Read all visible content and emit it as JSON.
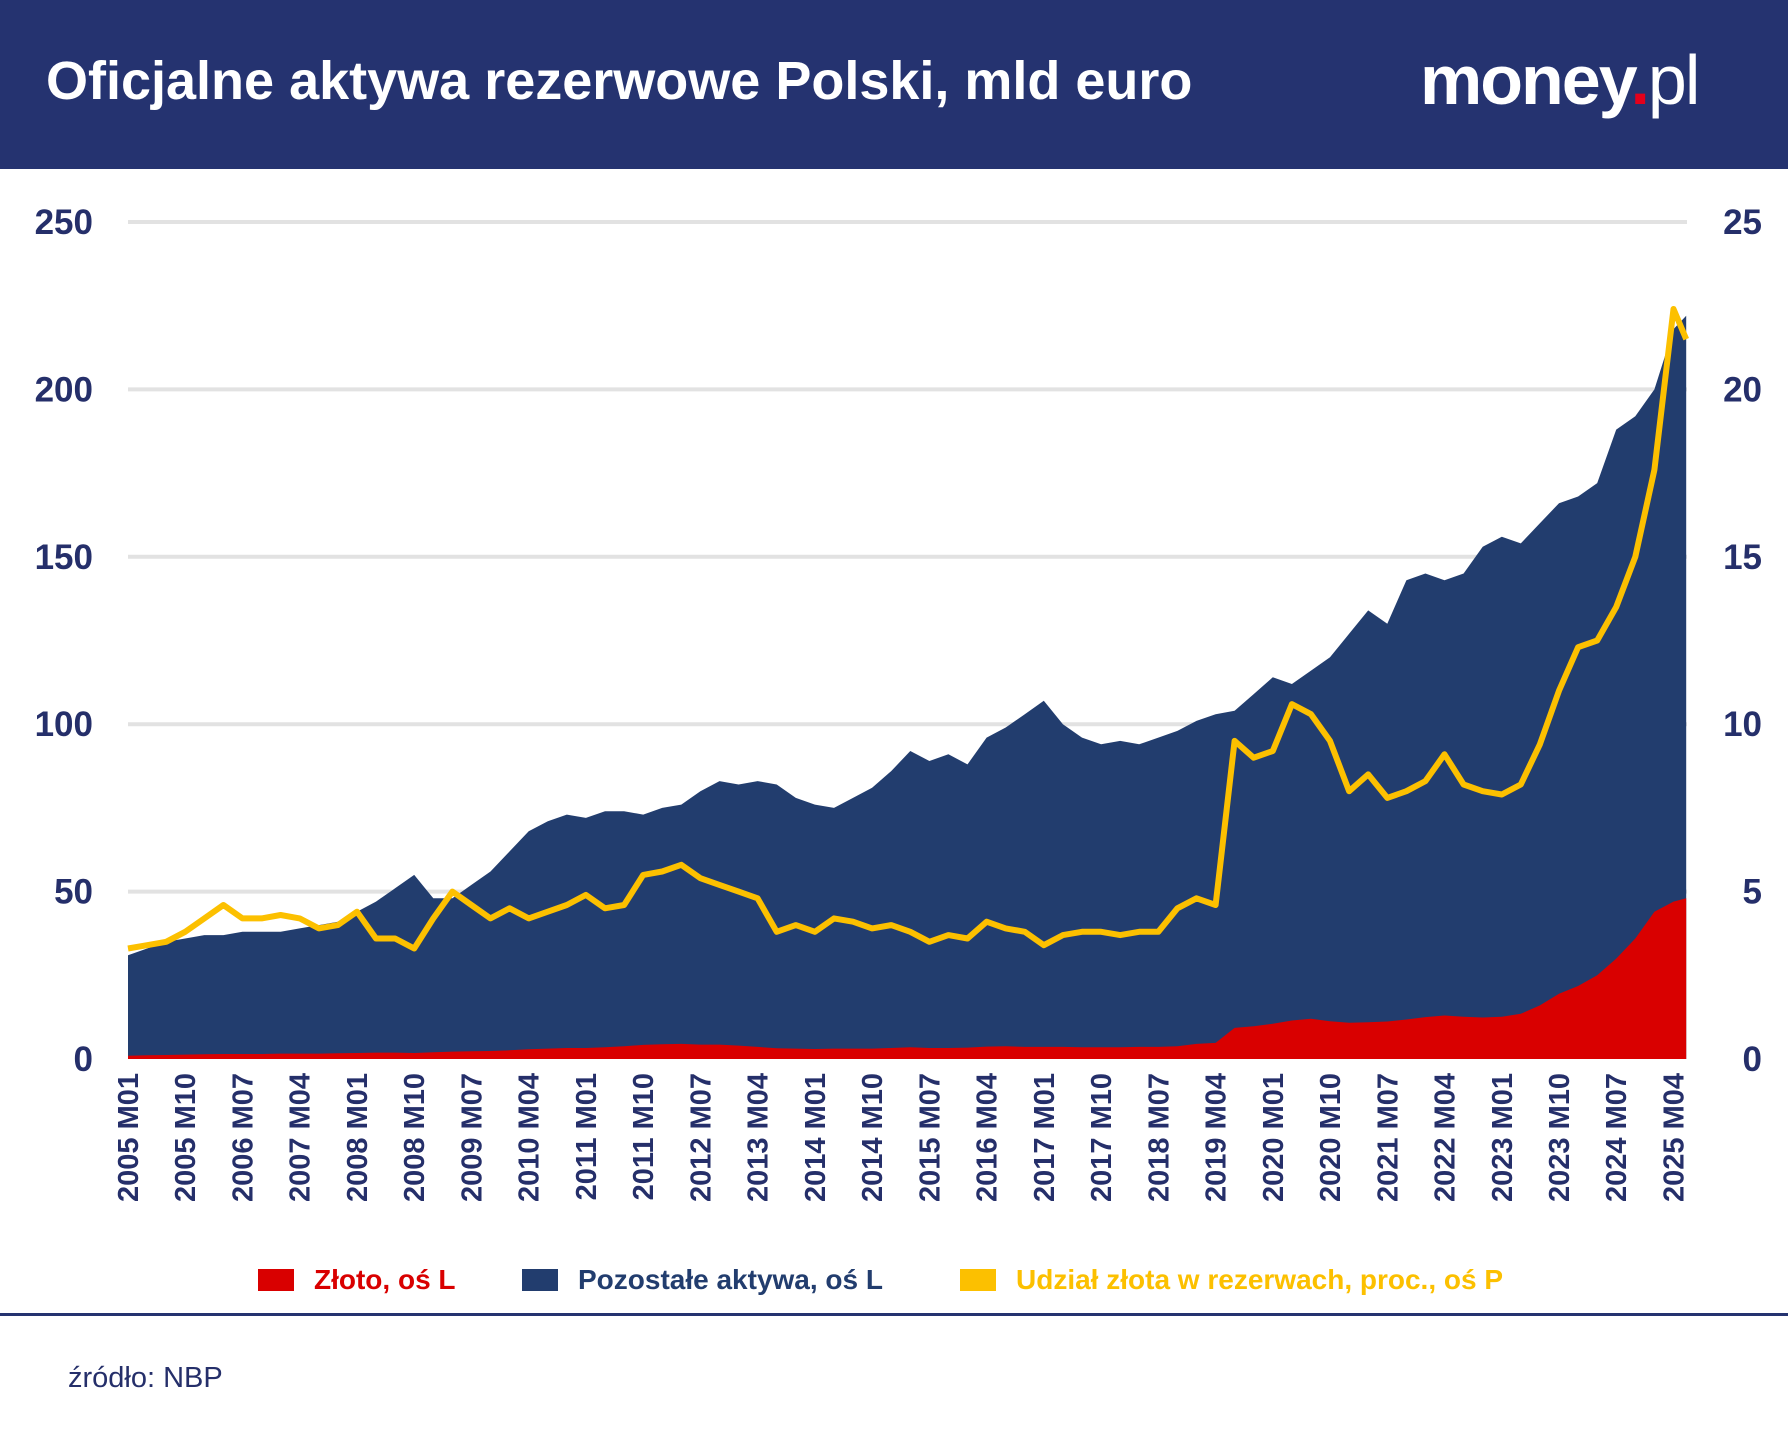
{
  "header": {
    "title": "Oficjalne aktywa rezerwowe Polski, mld euro",
    "logo": "money.pl"
  },
  "colors": {
    "header_bg": "#253370",
    "gold": "#d90000",
    "other": "#223d6e",
    "share": "#fcc000",
    "text": "#252f6a"
  },
  "legend": [
    {
      "label": "Złoto, oś L",
      "color": "#d90000"
    },
    {
      "label": "Pozostałe aktywa, oś L",
      "color": "#223d6e"
    },
    {
      "label": "Udział złota w rezerwach, proc., oś P",
      "color": "#fcc000"
    }
  ],
  "source": "źródło: NBP",
  "chart_data": {
    "type": "area",
    "title": "Oficjalne aktywa rezerwowe Polski, mld euro",
    "left_axis": {
      "ylim": [
        0,
        250
      ],
      "ticks": [
        "0",
        "50",
        "100",
        "150",
        "200",
        "250"
      ]
    },
    "right_axis": {
      "ylim": [
        0,
        25
      ],
      "ticks": [
        "0",
        "5",
        "10",
        "15",
        "20",
        "25"
      ]
    },
    "grid": true,
    "legend_position": "bottom",
    "x_ticks": [
      "2005 M01",
      "2005 M10",
      "2006 M07",
      "2007 M04",
      "2008 M01",
      "2008 M10",
      "2009 M07",
      "2010 M04",
      "2011 M01",
      "2011 M10",
      "2012 M07",
      "2013 M04",
      "2014 M01",
      "2014 M10",
      "2015 M07",
      "2016 M04",
      "2017 M01",
      "2017 M10",
      "2018 M07",
      "2019 M04",
      "2020 M01",
      "2020 M10",
      "2021 M07",
      "2022 M04",
      "2023 M01",
      "2023 M10",
      "2024 M07",
      "2025 M04"
    ],
    "x": [
      "2005 M01",
      "2005 M04",
      "2005 M07",
      "2005 M10",
      "2006 M01",
      "2006 M04",
      "2006 M07",
      "2006 M10",
      "2007 M01",
      "2007 M04",
      "2007 M07",
      "2007 M10",
      "2008 M01",
      "2008 M04",
      "2008 M07",
      "2008 M10",
      "2009 M01",
      "2009 M04",
      "2009 M07",
      "2009 M10",
      "2010 M01",
      "2010 M04",
      "2010 M07",
      "2010 M10",
      "2011 M01",
      "2011 M04",
      "2011 M07",
      "2011 M10",
      "2012 M01",
      "2012 M04",
      "2012 M07",
      "2012 M10",
      "2013 M01",
      "2013 M04",
      "2013 M07",
      "2013 M10",
      "2014 M01",
      "2014 M04",
      "2014 M07",
      "2014 M10",
      "2015 M01",
      "2015 M04",
      "2015 M07",
      "2015 M10",
      "2016 M01",
      "2016 M04",
      "2016 M07",
      "2016 M10",
      "2017 M01",
      "2017 M04",
      "2017 M07",
      "2017 M10",
      "2018 M01",
      "2018 M04",
      "2018 M07",
      "2018 M10",
      "2019 M01",
      "2019 M04",
      "2019 M07",
      "2019 M10",
      "2020 M01",
      "2020 M04",
      "2020 M07",
      "2020 M10",
      "2021 M01",
      "2021 M04",
      "2021 M07",
      "2021 M10",
      "2022 M01",
      "2022 M04",
      "2022 M07",
      "2022 M10",
      "2023 M01",
      "2023 M04",
      "2023 M07",
      "2023 M10",
      "2024 M01",
      "2024 M04",
      "2024 M07",
      "2024 M10",
      "2025 M01",
      "2025 M04",
      "2025 M06"
    ],
    "series": [
      {
        "name": "Złoto, oś L",
        "axis": "left",
        "values": [
          1.0,
          1.1,
          1.2,
          1.3,
          1.4,
          1.5,
          1.5,
          1.5,
          1.6,
          1.6,
          1.6,
          1.7,
          1.8,
          1.9,
          1.9,
          1.8,
          2.0,
          2.2,
          2.3,
          2.4,
          2.6,
          2.9,
          3.1,
          3.3,
          3.3,
          3.5,
          3.8,
          4.2,
          4.4,
          4.5,
          4.3,
          4.3,
          4.0,
          3.6,
          3.2,
          3.1,
          3.0,
          3.1,
          3.1,
          3.1,
          3.3,
          3.5,
          3.3,
          3.3,
          3.4,
          3.7,
          3.8,
          3.6,
          3.6,
          3.6,
          3.5,
          3.5,
          3.5,
          3.6,
          3.6,
          3.8,
          4.5,
          4.8,
          9.3,
          9.8,
          10.5,
          11.5,
          12.0,
          11.3,
          10.8,
          11.0,
          11.2,
          11.8,
          12.5,
          13.0,
          12.6,
          12.4,
          12.6,
          13.5,
          16.0,
          19.5,
          21.8,
          25.0,
          30.0,
          36.0,
          44.0,
          47.0,
          48.0
        ]
      },
      {
        "name": "Pozostałe aktywa, oś L",
        "axis": "left",
        "total_values": [
          31,
          33,
          35,
          36,
          37,
          37,
          38,
          38,
          38,
          39,
          40,
          41,
          44,
          47,
          51,
          55,
          48,
          48,
          52,
          56,
          62,
          68,
          71,
          73,
          72,
          74,
          74,
          73,
          75,
          76,
          80,
          83,
          82,
          83,
          82,
          78,
          76,
          75,
          78,
          81,
          86,
          92,
          89,
          91,
          88,
          96,
          99,
          103,
          107,
          100,
          96,
          94,
          95,
          94,
          96,
          98,
          101,
          103,
          104,
          109,
          114,
          112,
          116,
          120,
          127,
          134,
          130,
          143,
          145,
          143,
          145,
          153,
          156,
          154,
          160,
          166,
          168,
          172,
          188,
          192,
          200,
          218,
          222
        ]
      },
      {
        "name": "Udział złota w rezerwach, proc., oś P",
        "axis": "right",
        "values": [
          3.3,
          3.4,
          3.5,
          3.8,
          4.2,
          4.6,
          4.2,
          4.2,
          4.3,
          4.2,
          3.9,
          4.0,
          4.4,
          3.6,
          3.6,
          3.3,
          4.2,
          5.0,
          4.6,
          4.2,
          4.5,
          4.2,
          4.4,
          4.6,
          4.9,
          4.5,
          4.6,
          5.5,
          5.6,
          5.8,
          5.4,
          5.2,
          5.0,
          4.8,
          3.8,
          4.0,
          3.8,
          4.2,
          4.1,
          3.9,
          4.0,
          3.8,
          3.5,
          3.7,
          3.6,
          4.1,
          3.9,
          3.8,
          3.4,
          3.7,
          3.8,
          3.8,
          3.7,
          3.8,
          3.8,
          4.5,
          4.8,
          4.6,
          9.5,
          9.0,
          9.2,
          10.6,
          10.3,
          9.5,
          8.0,
          8.5,
          7.8,
          8.0,
          8.3,
          9.1,
          8.2,
          8.0,
          7.9,
          8.2,
          9.4,
          11.0,
          12.3,
          12.5,
          13.5,
          15.0,
          17.6,
          22.4,
          21.5
        ]
      }
    ]
  }
}
